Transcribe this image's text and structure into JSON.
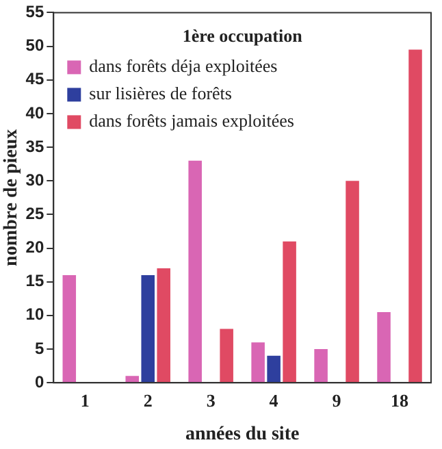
{
  "chart_data": {
    "type": "bar",
    "xlabel": "années du site",
    "ylabel": "nombre de pieux",
    "legend_title": "1ère occupation",
    "categories": [
      "1",
      "2",
      "3",
      "4",
      "9",
      "18"
    ],
    "series": [
      {
        "name": "dans forêts déja exploitées",
        "color": "#d966b4",
        "values": [
          16,
          1,
          33,
          6,
          5,
          10.5
        ]
      },
      {
        "name": "sur lisières de forêts",
        "color": "#2e3f9e",
        "values": [
          null,
          16,
          null,
          4,
          null,
          null
        ]
      },
      {
        "name": "dans forêts jamais exploitées",
        "color": "#e04a63",
        "values": [
          null,
          17,
          8,
          21,
          30,
          49.5
        ]
      }
    ],
    "ylim": [
      0,
      55
    ],
    "yticks": [
      0,
      5,
      10,
      15,
      20,
      25,
      30,
      35,
      40,
      45,
      50,
      55
    ],
    "grid": false,
    "legend": "top left"
  }
}
